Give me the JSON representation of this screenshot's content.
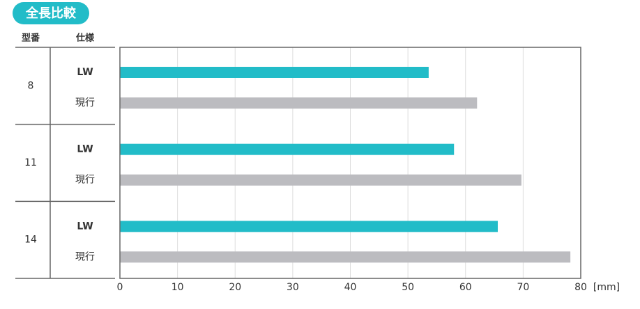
{
  "chart_data": {
    "type": "bar",
    "orientation": "horizontal",
    "title": "全長比較",
    "column_headers": [
      "型番",
      "仕様"
    ],
    "categories": [
      "8",
      "11",
      "14"
    ],
    "series": [
      {
        "name": "LW",
        "color": "#22bcc8",
        "values": [
          53.6,
          58,
          65.6
        ]
      },
      {
        "name": "現行",
        "color": "#bcbcc0",
        "values": [
          62,
          69.7,
          78.2
        ]
      }
    ],
    "xlabel": "[mm]",
    "xlim": [
      0,
      80
    ],
    "xticks": [
      0,
      10,
      20,
      30,
      40,
      50,
      60,
      70,
      80
    ],
    "grid": true
  }
}
